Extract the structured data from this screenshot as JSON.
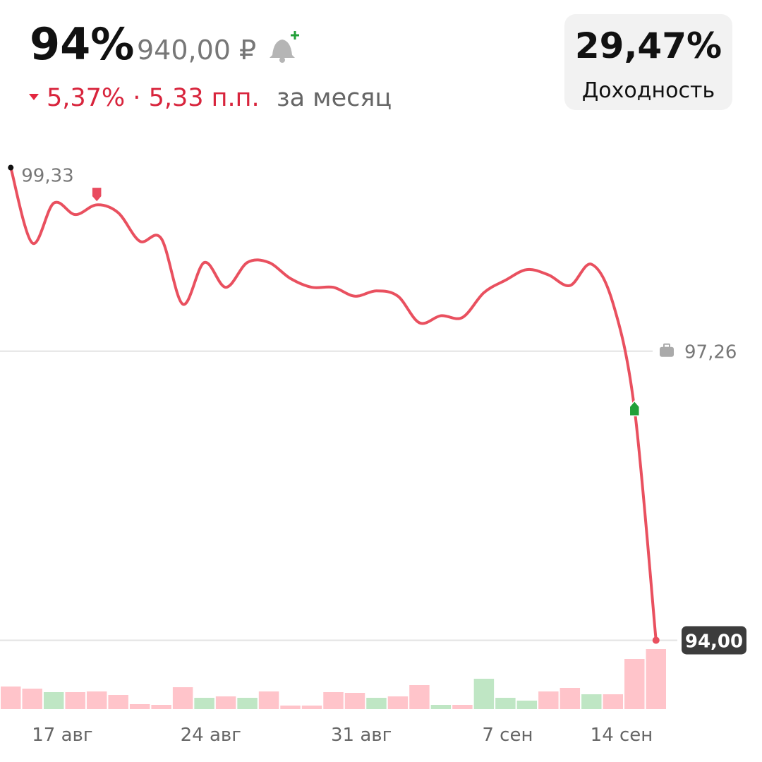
{
  "header": {
    "percent": "94%",
    "price": "940,00 ₽",
    "change": "5,37% · 5,33 п.п.",
    "period": "за месяц",
    "yield_value": "29,47%",
    "yield_label": "Доходность"
  },
  "chart_data": {
    "type": "line",
    "x": [
      0,
      1,
      2,
      3,
      4,
      5,
      6,
      7,
      8,
      9,
      10,
      11,
      12,
      13,
      14,
      15,
      16,
      17,
      18,
      19,
      20,
      21,
      22,
      23,
      24,
      25,
      26,
      27,
      28,
      29,
      30
    ],
    "xlim": [
      -0.5,
      30.5
    ],
    "xticks": [
      {
        "value": 2.4,
        "label": "17 авг"
      },
      {
        "value": 9.3,
        "label": "24 авг"
      },
      {
        "value": 16.3,
        "label": "31 авг"
      },
      {
        "value": 23.1,
        "label": "7 сен"
      },
      {
        "value": 28.4,
        "label": "14 сен"
      }
    ],
    "ylim": [
      93.94,
      99.39
    ],
    "series": [
      {
        "color": "#e9505f",
        "values": [
          99.33,
          98.48,
          98.93,
          98.8,
          98.91,
          98.82,
          98.5,
          98.53,
          97.79,
          98.26,
          97.98,
          98.26,
          98.26,
          98.08,
          97.98,
          97.98,
          97.88,
          97.94,
          97.88,
          97.58,
          97.66,
          97.64,
          97.92,
          98.06,
          98.18,
          98.12,
          98.0,
          98.24,
          97.8,
          96.61,
          94.0
        ],
        "value_labels": [
          "99,33",
          null,
          null,
          null,
          null,
          null,
          null,
          null,
          null,
          null,
          null,
          null,
          null,
          null,
          null,
          null,
          null,
          null,
          null,
          null,
          null,
          null,
          null,
          null,
          null,
          null,
          null,
          null,
          null,
          null,
          "94,00"
        ]
      }
    ],
    "reference_lines": [
      {
        "value": 97.26,
        "label": "97,26"
      }
    ],
    "markers": [
      {
        "x": 4,
        "color": "#e94b5f"
      },
      {
        "x": 29,
        "color": "#21a038"
      }
    ],
    "volume": {
      "values": [
        32,
        29,
        24,
        24,
        25,
        20,
        7,
        6,
        31,
        16,
        18,
        16,
        25,
        5,
        5,
        24,
        23,
        16,
        18,
        34,
        6,
        6,
        43,
        16,
        12,
        25,
        30,
        21,
        21,
        71,
        85
      ],
      "colors": [
        "#ffc4ca",
        "#ffc4ca",
        "#bfe6c4",
        "#ffc4ca",
        "#ffc4ca",
        "#ffc4ca",
        "#ffc4ca",
        "#ffc4ca",
        "#ffc4ca",
        "#bfe6c4",
        "#ffc4ca",
        "#bfe6c4",
        "#ffc4ca",
        "#ffc4ca",
        "#ffc4ca",
        "#ffc4ca",
        "#ffc4ca",
        "#bfe6c4",
        "#ffc4ca",
        "#ffc4ca",
        "#bfe6c4",
        "#ffc4ca",
        "#bfe6c4",
        "#bfe6c4",
        "#bfe6c4",
        "#ffc4ca",
        "#ffc4ca",
        "#bfe6c4",
        "#ffc4ca",
        "#ffc4ca",
        "#ffc4ca"
      ]
    }
  }
}
